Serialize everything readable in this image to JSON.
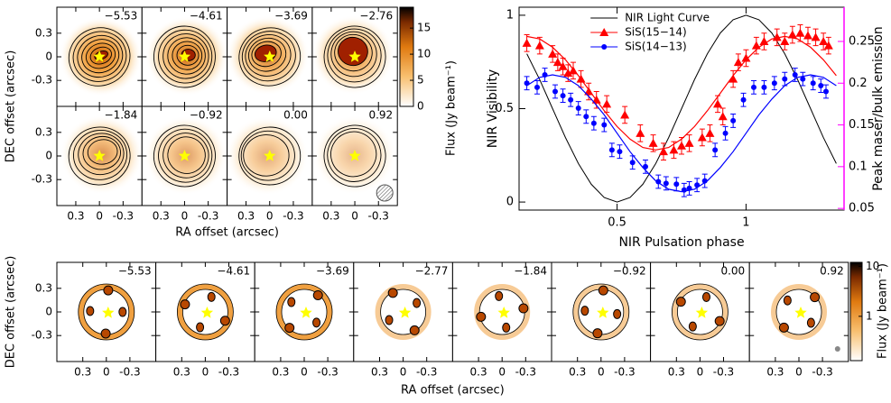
{
  "chart_data": [
    {
      "type": "image-grid",
      "panel_labels": [
        "−5.53",
        "−4.61",
        "−3.69",
        "−2.76",
        "−1.84",
        "−0.92",
        "0.00",
        "0.92"
      ],
      "xlabel": "RA offset (arcsec)",
      "ylabel": "DEC offset (arcsec)",
      "xlim": [
        0.54,
        -0.54
      ],
      "ylim": [
        -0.63,
        0.63
      ],
      "xticks": [
        0.3,
        0,
        -0.3
      ],
      "yticks": [
        0.3,
        0,
        -0.3
      ],
      "colorbar": {
        "label": "Flux (Jy beam⁻¹)",
        "lim": [
          0,
          19
        ],
        "ticks": [
          0,
          5,
          10,
          15
        ],
        "log": false
      }
    },
    {
      "type": "line",
      "xlabel": "NIR Pulsation phase",
      "ylabel": "NIR Visibility",
      "y2label": "Peak maser/bulk emission",
      "xlim": [
        0.12,
        1.38
      ],
      "xticks": [
        0.5,
        1
      ],
      "ylim": [
        -0.043,
        1.043
      ],
      "yticks": [
        0,
        0.5,
        1
      ],
      "y2lim": [
        0.048,
        0.291
      ],
      "y2ticks": [
        0.05,
        0.1,
        0.15,
        0.2,
        0.25
      ],
      "y2color": "#ff00ff",
      "legend": "upper center",
      "series": [
        {
          "name": "NIR Light Curve",
          "color": "#000000",
          "x": [
            0.15,
            0.2,
            0.25,
            0.3,
            0.35,
            0.4,
            0.45,
            0.5,
            0.55,
            0.6,
            0.65,
            0.7,
            0.75,
            0.8,
            0.85,
            0.9,
            0.95,
            1.0,
            1.05,
            1.1,
            1.15,
            1.2,
            1.25,
            1.3,
            1.35
          ],
          "values": [
            0.794,
            0.655,
            0.5,
            0.345,
            0.206,
            0.095,
            0.024,
            0,
            0.024,
            0.095,
            0.206,
            0.345,
            0.5,
            0.655,
            0.794,
            0.905,
            0.976,
            1,
            0.976,
            0.905,
            0.794,
            0.655,
            0.5,
            0.345,
            0.206
          ]
        },
        {
          "name": "SiS(15−14)",
          "color": "#ff0000",
          "marker": "triangle",
          "axis": "y2",
          "error": 0.01,
          "x": [
            0.15,
            0.2,
            0.25,
            0.27,
            0.29,
            0.31,
            0.33,
            0.36,
            0.39,
            0.42,
            0.46,
            0.53,
            0.59,
            0.64,
            0.68,
            0.72,
            0.75,
            0.78,
            0.83,
            0.86,
            0.89,
            0.91,
            0.95,
            0.97,
            1.0,
            1.04,
            1.07,
            1.12,
            1.15,
            1.18,
            1.21,
            1.24,
            1.27,
            1.3,
            1.32
          ],
          "values": [
            0.248,
            0.245,
            0.235,
            0.225,
            0.22,
            0.212,
            0.215,
            0.205,
            0.19,
            0.18,
            0.175,
            0.162,
            0.14,
            0.128,
            0.118,
            0.12,
            0.125,
            0.128,
            0.135,
            0.14,
            0.175,
            0.16,
            0.205,
            0.225,
            0.23,
            0.245,
            0.25,
            0.255,
            0.25,
            0.258,
            0.26,
            0.257,
            0.255,
            0.25,
            0.245
          ],
          "fit": {
            "x": [
              0.15,
              0.2,
              0.25,
              0.3,
              0.35,
              0.4,
              0.45,
              0.5,
              0.55,
              0.6,
              0.65,
              0.7,
              0.75,
              0.8,
              0.85,
              0.9,
              0.95,
              1.0,
              1.05,
              1.1,
              1.15,
              1.2,
              1.25,
              1.3,
              1.35
            ],
            "values": [
              0.256,
              0.253,
              0.243,
              0.228,
              0.209,
              0.188,
              0.167,
              0.148,
              0.133,
              0.123,
              0.12,
              0.123,
              0.133,
              0.148,
              0.167,
              0.188,
              0.209,
              0.228,
              0.243,
              0.253,
              0.256,
              0.253,
              0.243,
              0.228,
              0.209
            ]
          }
        },
        {
          "name": "SiS(14−13)",
          "color": "#0000ff",
          "marker": "circle",
          "axis": "y2",
          "error": 0.008,
          "x": [
            0.15,
            0.19,
            0.22,
            0.26,
            0.29,
            0.32,
            0.35,
            0.38,
            0.41,
            0.45,
            0.48,
            0.51,
            0.56,
            0.61,
            0.66,
            0.69,
            0.73,
            0.76,
            0.78,
            0.81,
            0.84,
            0.88,
            0.92,
            0.95,
            0.99,
            1.03,
            1.07,
            1.11,
            1.15,
            1.19,
            1.22,
            1.26,
            1.29,
            1.31
          ],
          "values": [
            0.2,
            0.195,
            0.21,
            0.19,
            0.185,
            0.18,
            0.17,
            0.16,
            0.152,
            0.15,
            0.12,
            0.118,
            0.105,
            0.1,
            0.082,
            0.08,
            0.079,
            0.072,
            0.074,
            0.078,
            0.083,
            0.12,
            0.14,
            0.155,
            0.18,
            0.195,
            0.195,
            0.2,
            0.205,
            0.21,
            0.205,
            0.2,
            0.197,
            0.19
          ],
          "fit": {
            "x": [
              0.15,
              0.2,
              0.25,
              0.3,
              0.35,
              0.4,
              0.45,
              0.5,
              0.55,
              0.6,
              0.65,
              0.7,
              0.75,
              0.8,
              0.85,
              0.9,
              0.95,
              1.0,
              1.05,
              1.1,
              1.15,
              1.2,
              1.25,
              1.3,
              1.35
            ],
            "values": [
              0.197,
              0.207,
              0.21,
              0.207,
              0.197,
              0.181,
              0.162,
              0.14,
              0.118,
              0.099,
              0.083,
              0.073,
              0.07,
              0.073,
              0.083,
              0.099,
              0.118,
              0.14,
              0.162,
              0.181,
              0.197,
              0.207,
              0.21,
              0.207,
              0.197
            ]
          }
        }
      ]
    },
    {
      "type": "image-grid",
      "panel_labels": [
        "−5.53",
        "−4.61",
        "−3.69",
        "−2.77",
        "−1.84",
        "−0.92",
        "0.00",
        "0.92"
      ],
      "xlabel": "RA offset (arcsec)",
      "ylabel": "DEC offset (arcsec)",
      "xlim": [
        0.63,
        -0.63
      ],
      "ylim": [
        -0.63,
        0.63
      ],
      "xticks": [
        0.3,
        0,
        -0.3
      ],
      "yticks": [
        0.3,
        0,
        -0.3
      ],
      "colorbar": {
        "label": "Flux (Jy beam⁻¹)",
        "lim": [
          0.13,
          12
        ],
        "ticks": [
          1,
          10
        ],
        "log": true
      }
    }
  ]
}
